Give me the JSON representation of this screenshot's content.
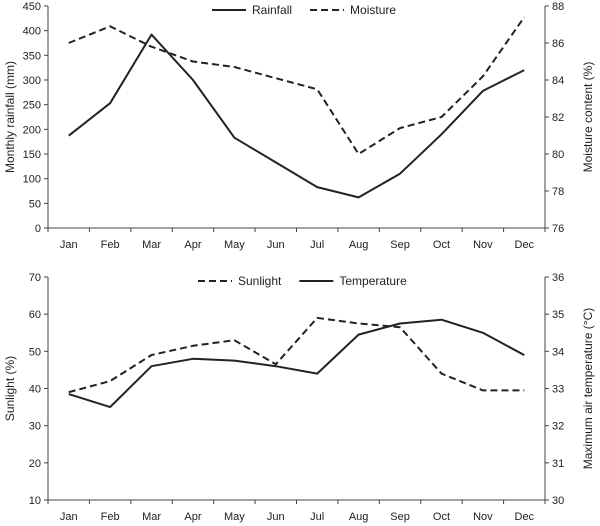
{
  "chart_data": [
    {
      "type": "line",
      "categories": [
        "Jan",
        "Feb",
        "Mar",
        "Apr",
        "May",
        "Jun",
        "Jul",
        "Aug",
        "Sep",
        "Oct",
        "Nov",
        "Dec"
      ],
      "ylabel_left": "Monthly rainfall (mm)",
      "ylabel_right": "Moisture content (%)",
      "ylim_left": [
        0,
        450
      ],
      "ylim_right": [
        76,
        88
      ],
      "yticks_left": [
        0,
        50,
        100,
        150,
        200,
        250,
        300,
        350,
        400,
        450
      ],
      "yticks_right": [
        76,
        78,
        80,
        82,
        84,
        86,
        88
      ],
      "legend_position": "top",
      "series": [
        {
          "name": "Rainfall",
          "axis": "left",
          "style": "solid",
          "values": [
            187,
            253,
            392,
            300,
            183,
            133,
            83,
            62,
            110,
            190,
            278,
            320
          ]
        },
        {
          "name": "Moisture",
          "axis": "right",
          "style": "dashed",
          "values": [
            86.0,
            86.9,
            85.8,
            85.0,
            84.7,
            84.1,
            83.5,
            80.0,
            81.4,
            82.0,
            84.2,
            87.4
          ]
        }
      ]
    },
    {
      "type": "line",
      "categories": [
        "Jan",
        "Feb",
        "Mar",
        "Apr",
        "May",
        "Jun",
        "Jul",
        "Aug",
        "Sep",
        "Oct",
        "Nov",
        "Dec"
      ],
      "ylabel_left": "Sunlight (%)",
      "ylabel_right": "Maximum air temperature (°C)",
      "ylim_left": [
        10,
        70
      ],
      "ylim_right": [
        30,
        36
      ],
      "yticks_left": [
        10,
        20,
        30,
        40,
        50,
        60,
        70
      ],
      "yticks_right": [
        30,
        31,
        32,
        33,
        34,
        35,
        36
      ],
      "legend_position": "top",
      "series": [
        {
          "name": "Sunlight",
          "axis": "left",
          "style": "dashed",
          "values": [
            39,
            42,
            49,
            51.5,
            53,
            46.5,
            59,
            57.5,
            56.5,
            44,
            39.5,
            39.5
          ]
        },
        {
          "name": "Temperature",
          "axis": "right",
          "style": "solid",
          "values": [
            32.85,
            32.5,
            33.6,
            33.8,
            33.75,
            33.6,
            33.4,
            34.45,
            34.75,
            34.85,
            34.5,
            33.9
          ]
        }
      ]
    }
  ]
}
